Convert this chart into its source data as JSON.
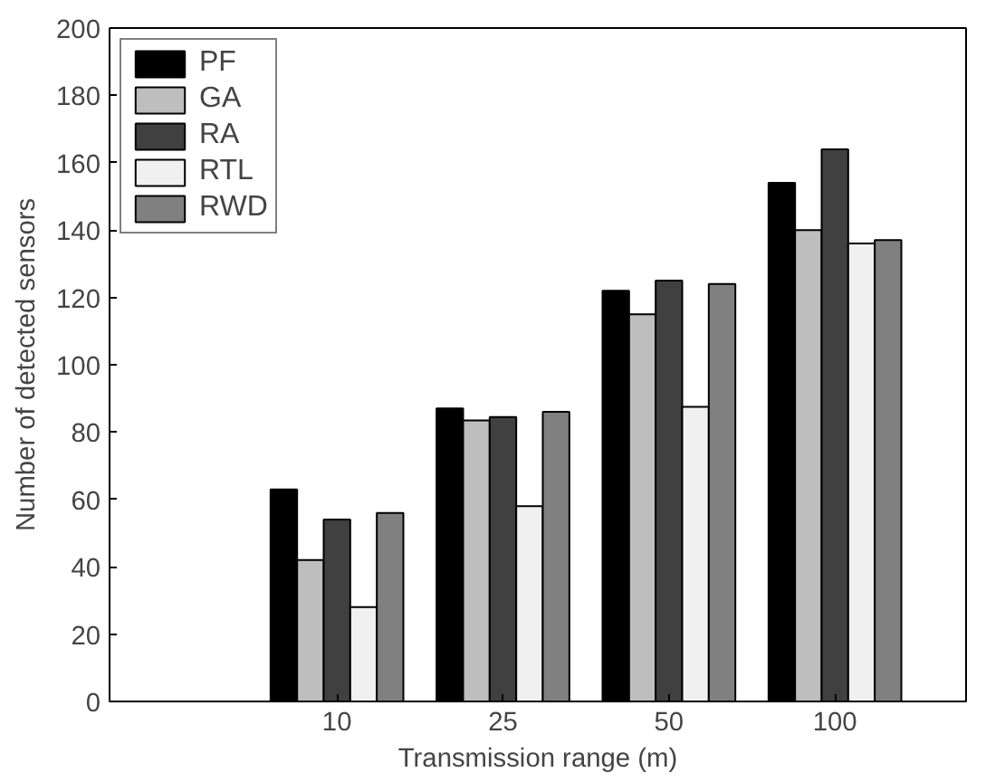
{
  "chart_data": {
    "type": "bar",
    "xlabel": "Transmission range (m)",
    "ylabel": "Number of detected sensors",
    "categories": [
      "10",
      "25",
      "50",
      "100"
    ],
    "series": [
      {
        "name": "PF",
        "color": "#000000",
        "values": [
          63,
          87,
          122,
          154
        ]
      },
      {
        "name": "GA",
        "color": "#bebebe",
        "values": [
          42,
          83.5,
          115,
          140
        ]
      },
      {
        "name": "RA",
        "color": "#404040",
        "values": [
          54,
          84.5,
          125,
          164
        ]
      },
      {
        "name": "RTL",
        "color": "#f0f0f0",
        "values": [
          28,
          58,
          87.5,
          136
        ]
      },
      {
        "name": "RWD",
        "color": "#808080",
        "values": [
          56,
          86,
          124,
          137
        ]
      }
    ],
    "ylim": [
      0,
      200
    ],
    "yticks": [
      0,
      20,
      40,
      60,
      80,
      100,
      120,
      140,
      160,
      180,
      200
    ],
    "grid": false,
    "legend": "top left"
  }
}
